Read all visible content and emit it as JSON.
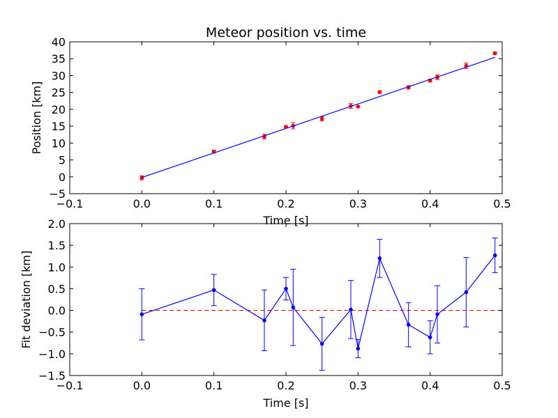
{
  "chart_data": [
    {
      "type": "scatter",
      "title": "Meteor position vs. time",
      "xlabel": "Time [s]",
      "ylabel": "Position [km]",
      "xlim": [
        -0.1,
        0.5
      ],
      "ylim": [
        -5,
        40
      ],
      "xticks": [
        "−0.1",
        "0.0",
        "0.1",
        "0.2",
        "0.3",
        "0.4",
        "0.5"
      ],
      "yticks": [
        "−5",
        "0",
        "5",
        "10",
        "15",
        "20",
        "25",
        "30",
        "35",
        "40"
      ],
      "grid": false,
      "series": [
        {
          "kind": "errorbar",
          "color": "#ff0000",
          "x": [
            0.0,
            0.1,
            0.17,
            0.2,
            0.21,
            0.25,
            0.29,
            0.3,
            0.33,
            0.37,
            0.4,
            0.41,
            0.45,
            0.49
          ],
          "y": [
            -0.3,
            7.5,
            11.9,
            14.8,
            15.1,
            17.2,
            21.0,
            20.8,
            25.1,
            26.5,
            28.5,
            29.5,
            32.9,
            36.6
          ],
          "err": [
            0.6,
            0.4,
            0.7,
            0.3,
            0.9,
            0.6,
            0.7,
            0.2,
            0.4,
            0.5,
            0.4,
            0.7,
            0.8,
            0.4
          ]
        },
        {
          "kind": "fit-line",
          "color": "#0000ff",
          "x": [
            0.0,
            0.49
          ],
          "y": [
            -0.2,
            35.4
          ]
        }
      ]
    },
    {
      "type": "line",
      "title": "",
      "xlabel": "Time [s]",
      "ylabel": "Fit deviation [km]",
      "xlim": [
        -0.1,
        0.5
      ],
      "ylim": [
        -1.5,
        2.0
      ],
      "xticks": [
        "−0.1",
        "0.0",
        "0.1",
        "0.2",
        "0.3",
        "0.4",
        "0.5"
      ],
      "yticks": [
        "−1.5",
        "−1.0",
        "−0.5",
        "0.0",
        "0.5",
        "1.0",
        "1.5",
        "2.0"
      ],
      "grid": false,
      "reference_line": {
        "y": 0,
        "color": "#ff0000",
        "style": "dashed"
      },
      "series": [
        {
          "kind": "errorbar-line",
          "color": "#0000ff",
          "x": [
            0.0,
            0.1,
            0.17,
            0.2,
            0.21,
            0.25,
            0.29,
            0.3,
            0.33,
            0.37,
            0.4,
            0.41,
            0.45,
            0.49
          ],
          "y": [
            -0.09,
            0.47,
            -0.23,
            0.5,
            0.07,
            -0.77,
            0.02,
            -0.88,
            1.2,
            -0.33,
            -0.62,
            -0.09,
            0.42,
            1.27
          ],
          "err": [
            0.59,
            0.36,
            0.7,
            0.26,
            0.88,
            0.61,
            0.67,
            0.21,
            0.44,
            0.51,
            0.38,
            0.66,
            0.8,
            0.4
          ]
        }
      ]
    }
  ]
}
